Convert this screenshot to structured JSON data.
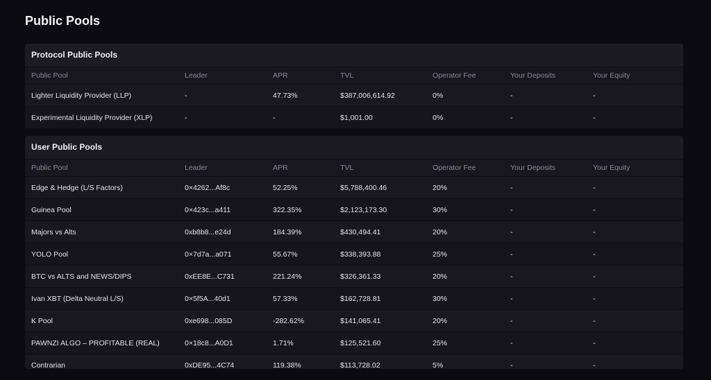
{
  "page": {
    "title": "Public Pools"
  },
  "protocol": {
    "title": "Protocol Public Pools",
    "columns": [
      "Public Pool",
      "Leader",
      "APR",
      "TVL",
      "Operator Fee",
      "Your Deposits",
      "Your Equity"
    ],
    "rows": [
      [
        "Lighter Liquidity Provider (LLP)",
        "-",
        "47.73%",
        "$387,006,614.92",
        "0%",
        "-",
        "-"
      ],
      [
        "Experimental Liquidity Provider (XLP)",
        "-",
        "-",
        "$1,001.00",
        "0%",
        "-",
        "-"
      ]
    ]
  },
  "user": {
    "title": "User Public Pools",
    "columns": [
      "Public Pool",
      "Leader",
      "APR",
      "TVL",
      "Operator Fee",
      "Your Deposits",
      "Your Equity"
    ],
    "rows": [
      [
        "Edge & Hedge (L/S Factors)",
        "0×4262...Af8c",
        "52.25%",
        "$5,788,400.46",
        "20%",
        "-",
        "-"
      ],
      [
        "Guinea Pool",
        "0×423c...a411",
        "322.35%",
        "$2,123,173.30",
        "30%",
        "-",
        "-"
      ],
      [
        "Majors vs Alts",
        "0xb8b8...e24d",
        "184.39%",
        "$430,494.41",
        "20%",
        "-",
        "-"
      ],
      [
        "YOLO Pool",
        "0×7d7a...a071",
        "55.67%",
        "$338,393.88",
        "25%",
        "-",
        "-"
      ],
      [
        "BTC vs ALTS and NEWS/DIPS",
        "0xEE8E...C731",
        "221.24%",
        "$326,361.33",
        "20%",
        "-",
        "-"
      ],
      [
        "Ivan XBT (Delta Neutral L/S)",
        "0×5f5A...40d1",
        "57.33%",
        "$162,728.81",
        "30%",
        "-",
        "-"
      ],
      [
        "K Pool",
        "0xe698...085D",
        "-282.62%",
        "$141,065.41",
        "20%",
        "-",
        "-"
      ],
      [
        "PAWNZI ALGO – PROFITABLE (REAL)",
        "0×18c8...A0D1",
        "1.71%",
        "$125,521.60",
        "25%",
        "-",
        "-"
      ],
      [
        "Contrarian",
        "0xDE95...4C74",
        "119.38%",
        "$113,728.02",
        "5%",
        "-",
        "-"
      ]
    ]
  }
}
